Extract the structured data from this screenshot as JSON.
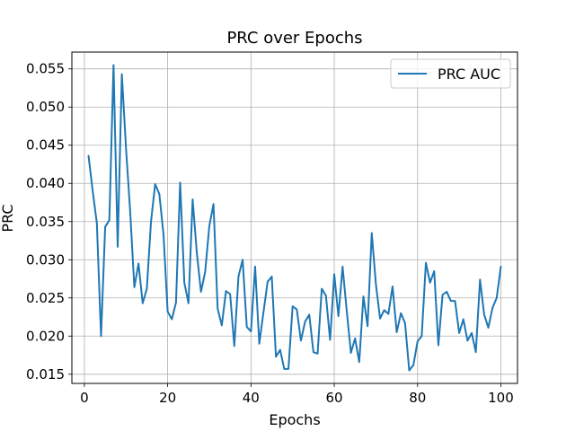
{
  "chart_data": {
    "type": "line",
    "title": "PRC over Epochs",
    "xlabel": "Epochs",
    "ylabel": "PRC",
    "xlim": [
      -3,
      104
    ],
    "ylim": [
      0.0138,
      0.0572
    ],
    "xticks": [
      0,
      20,
      40,
      60,
      80,
      100
    ],
    "yticks": [
      0.015,
      0.02,
      0.025,
      0.03,
      0.035,
      0.04,
      0.045,
      0.05,
      0.055
    ],
    "xtick_labels": [
      "0",
      "20",
      "40",
      "60",
      "80",
      "100"
    ],
    "ytick_labels": [
      "0.015",
      "0.020",
      "0.025",
      "0.030",
      "0.035",
      "0.040",
      "0.045",
      "0.050",
      "0.055"
    ],
    "grid": true,
    "legend_position": "top-right",
    "series": [
      {
        "name": "PRC AUC",
        "color": "#1f77b4",
        "x": [
          1,
          2,
          3,
          4,
          5,
          6,
          7,
          8,
          9,
          10,
          11,
          12,
          13,
          14,
          15,
          16,
          17,
          18,
          19,
          20,
          21,
          22,
          23,
          24,
          25,
          26,
          27,
          28,
          29,
          30,
          31,
          32,
          33,
          34,
          35,
          36,
          37,
          38,
          39,
          40,
          41,
          42,
          43,
          44,
          45,
          46,
          47,
          48,
          49,
          50,
          51,
          52,
          53,
          54,
          55,
          56,
          57,
          58,
          59,
          60,
          61,
          62,
          63,
          64,
          65,
          66,
          67,
          68,
          69,
          70,
          71,
          72,
          73,
          74,
          75,
          76,
          77,
          78,
          79,
          80,
          81,
          82,
          83,
          84,
          85,
          86,
          87,
          88,
          89,
          90,
          91,
          92,
          93,
          94,
          95,
          96,
          97,
          98,
          99,
          100
        ],
        "values": [
          0.0436,
          0.039,
          0.0348,
          0.02,
          0.0343,
          0.0352,
          0.0555,
          0.0317,
          0.0543,
          0.0446,
          0.0363,
          0.0264,
          0.0295,
          0.0243,
          0.0262,
          0.035,
          0.0399,
          0.0386,
          0.0333,
          0.0232,
          0.0222,
          0.0244,
          0.0401,
          0.027,
          0.0243,
          0.0379,
          0.0309,
          0.0258,
          0.0284,
          0.0344,
          0.0373,
          0.0236,
          0.0214,
          0.0259,
          0.0255,
          0.0187,
          0.0278,
          0.03,
          0.0212,
          0.0206,
          0.0291,
          0.019,
          0.0231,
          0.0271,
          0.0278,
          0.0173,
          0.0182,
          0.0157,
          0.0157,
          0.0239,
          0.0235,
          0.0194,
          0.0219,
          0.0228,
          0.0179,
          0.0177,
          0.0262,
          0.0253,
          0.0195,
          0.0281,
          0.0226,
          0.0291,
          0.0233,
          0.0178,
          0.0197,
          0.0166,
          0.0252,
          0.0213,
          0.0335,
          0.0268,
          0.0223,
          0.0234,
          0.0229,
          0.0265,
          0.0205,
          0.023,
          0.0217,
          0.0155,
          0.0162,
          0.0193,
          0.02,
          0.0296,
          0.027,
          0.0285,
          0.0188,
          0.0254,
          0.0258,
          0.0246,
          0.0246,
          0.0204,
          0.0222,
          0.0194,
          0.0204,
          0.0179,
          0.0274,
          0.0228,
          0.0211,
          0.0237,
          0.025,
          0.0291
        ]
      }
    ]
  }
}
